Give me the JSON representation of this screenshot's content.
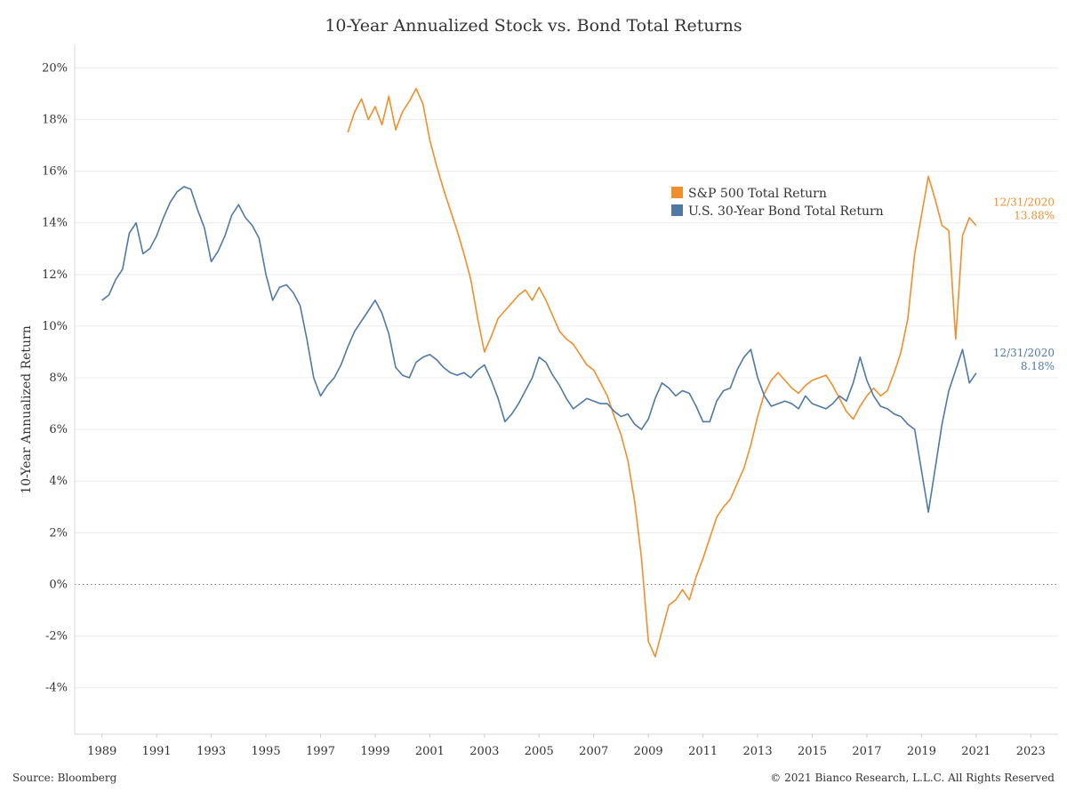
{
  "chart_data": {
    "type": "line",
    "title": "10-Year Annualized Stock vs. Bond Total Returns",
    "ylabel": "10-Year Annualized Return",
    "xlabel": "",
    "xlim": [
      1988,
      2024
    ],
    "ylim": [
      -5.8,
      20.7
    ],
    "x_ticks": [
      1989,
      1991,
      1993,
      1995,
      1997,
      1999,
      2001,
      2003,
      2005,
      2007,
      2009,
      2011,
      2013,
      2015,
      2017,
      2019,
      2021,
      2023
    ],
    "x_tick_labels": [
      "1989",
      "1991",
      "1993",
      "1995",
      "1997",
      "1999",
      "2001",
      "2003",
      "2005",
      "2007",
      "2009",
      "2011",
      "2013",
      "2015",
      "2017",
      "2019",
      "2021",
      "2023"
    ],
    "y_ticks": [
      -4,
      -2,
      0,
      2,
      4,
      6,
      8,
      10,
      12,
      14,
      16,
      18,
      20
    ],
    "y_tick_labels": [
      "-4%",
      "-2%",
      "0%",
      "2%",
      "4%",
      "6%",
      "8%",
      "10%",
      "12%",
      "14%",
      "16%",
      "18%",
      "20%"
    ],
    "grid": "horizontal",
    "reference_line": {
      "y": 0,
      "style": "dotted"
    },
    "legend_position": "upper-right inside",
    "series": [
      {
        "name": "S&P 500 Total Return",
        "color": "#f28e2b",
        "x": [
          1998.0,
          1998.25,
          1998.5,
          1998.75,
          1999.0,
          1999.25,
          1999.5,
          1999.75,
          2000.0,
          2000.25,
          2000.5,
          2000.75,
          2001.0,
          2001.25,
          2001.5,
          2001.75,
          2002.0,
          2002.25,
          2002.5,
          2002.75,
          2003.0,
          2003.25,
          2003.5,
          2003.75,
          2004.0,
          2004.25,
          2004.5,
          2004.75,
          2005.0,
          2005.25,
          2005.5,
          2005.75,
          2006.0,
          2006.25,
          2006.5,
          2006.75,
          2007.0,
          2007.25,
          2007.5,
          2007.75,
          2008.0,
          2008.25,
          2008.5,
          2008.75,
          2009.0,
          2009.25,
          2009.5,
          2009.75,
          2010.0,
          2010.25,
          2010.5,
          2010.75,
          2011.0,
          2011.25,
          2011.5,
          2011.75,
          2012.0,
          2012.25,
          2012.5,
          2012.75,
          2013.0,
          2013.25,
          2013.5,
          2013.75,
          2014.0,
          2014.25,
          2014.5,
          2014.75,
          2015.0,
          2015.25,
          2015.5,
          2015.75,
          2016.0,
          2016.25,
          2016.5,
          2016.75,
          2017.0,
          2017.25,
          2017.5,
          2017.75,
          2018.0,
          2018.25,
          2018.5,
          2018.75,
          2019.0,
          2019.25,
          2019.5,
          2019.75,
          2020.0,
          2020.25,
          2020.5,
          2020.75,
          2021.0
        ],
        "y": [
          17.5,
          18.3,
          18.8,
          18.0,
          18.5,
          17.8,
          18.9,
          17.6,
          18.3,
          18.7,
          19.2,
          18.6,
          17.2,
          16.2,
          15.3,
          14.5,
          13.7,
          12.8,
          11.8,
          10.3,
          9.0,
          9.6,
          10.3,
          10.6,
          10.9,
          11.2,
          11.4,
          11.0,
          11.5,
          11.0,
          10.4,
          9.8,
          9.5,
          9.3,
          8.9,
          8.5,
          8.3,
          7.8,
          7.3,
          6.5,
          5.8,
          4.8,
          3.2,
          1.0,
          -2.2,
          -2.8,
          -1.8,
          -0.8,
          -0.6,
          -0.2,
          -0.6,
          0.3,
          1.0,
          1.8,
          2.6,
          3.0,
          3.3,
          3.9,
          4.5,
          5.4,
          6.5,
          7.4,
          7.9,
          8.2,
          7.9,
          7.6,
          7.4,
          7.7,
          7.9,
          8.0,
          8.1,
          7.7,
          7.2,
          6.7,
          6.4,
          6.9,
          7.3,
          7.6,
          7.3,
          7.5,
          8.2,
          9.0,
          10.3,
          12.8,
          14.3,
          15.8,
          14.9,
          13.9,
          13.7,
          9.5,
          13.5,
          14.2,
          13.9
        ]
      },
      {
        "name": "U.S. 30-Year Bond Total Return",
        "color": "#4e79a7",
        "x": [
          1989.0,
          1989.25,
          1989.5,
          1989.75,
          1990.0,
          1990.25,
          1990.5,
          1990.75,
          1991.0,
          1991.25,
          1991.5,
          1991.75,
          1992.0,
          1992.25,
          1992.5,
          1992.75,
          1993.0,
          1993.25,
          1993.5,
          1993.75,
          1994.0,
          1994.25,
          1994.5,
          1994.75,
          1995.0,
          1995.25,
          1995.5,
          1995.75,
          1996.0,
          1996.25,
          1996.5,
          1996.75,
          1997.0,
          1997.25,
          1997.5,
          1997.75,
          1998.0,
          1998.25,
          1998.5,
          1998.75,
          1999.0,
          1999.25,
          1999.5,
          1999.75,
          2000.0,
          2000.25,
          2000.5,
          2000.75,
          2001.0,
          2001.25,
          2001.5,
          2001.75,
          2002.0,
          2002.25,
          2002.5,
          2002.75,
          2003.0,
          2003.25,
          2003.5,
          2003.75,
          2004.0,
          2004.25,
          2004.5,
          2004.75,
          2005.0,
          2005.25,
          2005.5,
          2005.75,
          2006.0,
          2006.25,
          2006.5,
          2006.75,
          2007.0,
          2007.25,
          2007.5,
          2007.75,
          2008.0,
          2008.25,
          2008.5,
          2008.75,
          2009.0,
          2009.25,
          2009.5,
          2009.75,
          2010.0,
          2010.25,
          2010.5,
          2010.75,
          2011.0,
          2011.25,
          2011.5,
          2011.75,
          2012.0,
          2012.25,
          2012.5,
          2012.75,
          2013.0,
          2013.25,
          2013.5,
          2013.75,
          2014.0,
          2014.25,
          2014.5,
          2014.75,
          2015.0,
          2015.25,
          2015.5,
          2015.75,
          2016.0,
          2016.25,
          2016.5,
          2016.75,
          2017.0,
          2017.25,
          2017.5,
          2017.75,
          2018.0,
          2018.25,
          2018.5,
          2018.75,
          2019.0,
          2019.25,
          2019.5,
          2019.75,
          2020.0,
          2020.25,
          2020.5,
          2020.75,
          2021.0
        ],
        "y": [
          11.0,
          11.2,
          11.8,
          12.2,
          13.6,
          14.0,
          12.8,
          13.0,
          13.5,
          14.2,
          14.8,
          15.2,
          15.4,
          15.3,
          14.5,
          13.8,
          12.5,
          12.9,
          13.5,
          14.3,
          14.7,
          14.2,
          13.9,
          13.4,
          12.0,
          11.0,
          11.5,
          11.6,
          11.3,
          10.8,
          9.5,
          8.0,
          7.3,
          7.7,
          8.0,
          8.5,
          9.2,
          9.8,
          10.2,
          10.6,
          11.0,
          10.5,
          9.7,
          8.4,
          8.1,
          8.0,
          8.6,
          8.8,
          8.9,
          8.7,
          8.4,
          8.2,
          8.1,
          8.2,
          8.0,
          8.3,
          8.5,
          7.9,
          7.2,
          6.3,
          6.6,
          7.0,
          7.5,
          8.0,
          8.8,
          8.6,
          8.1,
          7.7,
          7.2,
          6.8,
          7.0,
          7.2,
          7.1,
          7.0,
          7.0,
          6.7,
          6.5,
          6.6,
          6.2,
          6.0,
          6.4,
          7.2,
          7.8,
          7.6,
          7.3,
          7.5,
          7.4,
          6.9,
          6.3,
          6.3,
          7.1,
          7.5,
          7.6,
          8.3,
          8.8,
          9.1,
          8.0,
          7.3,
          6.9,
          7.0,
          7.1,
          7.0,
          6.8,
          7.3,
          7.0,
          6.9,
          6.8,
          7.0,
          7.3,
          7.1,
          7.8,
          8.8,
          7.9,
          7.3,
          6.9,
          6.8,
          6.6,
          6.5,
          6.2,
          6.0,
          4.4,
          2.8,
          4.5,
          6.2,
          7.5,
          8.3,
          9.1,
          7.8,
          8.18
        ]
      }
    ],
    "end_labels": [
      {
        "series": "S&P 500 Total Return",
        "date": "12/31/2020",
        "value": "13.88%"
      },
      {
        "series": "U.S. 30-Year Bond Total Return",
        "date": "12/31/2020",
        "value": "8.18%"
      }
    ]
  },
  "footer": {
    "source": "Source: Bloomberg",
    "copyright": "© 2021 Bianco Research, L.L.C. All Rights Reserved"
  }
}
